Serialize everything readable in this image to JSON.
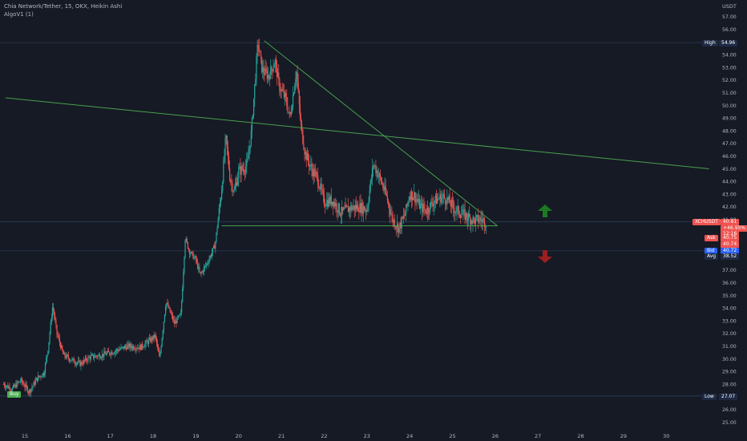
{
  "header": {
    "title": "Chia Network/Tether, 15, OKX, Heikin Ashi",
    "indicator": "AlgoV1 (1)"
  },
  "colors": {
    "background": "#161a25",
    "up": "#26a69a",
    "down": "#ef5350",
    "trendline": "#4caf50",
    "hline": "#2a3a55",
    "axis_text": "#b2b5be"
  },
  "markers": {
    "buy_label": "Buy",
    "long_arrow": "up-arrow",
    "short_arrow": "down-arrow"
  },
  "price_scale": {
    "currency": "USDT",
    "high_label": "High",
    "high_value": "54.96",
    "low_label": "Low",
    "low_value": "27.07",
    "symbol_tag": "XCHUSDT",
    "symbol_price": "40.81",
    "symbol_change": "+46.95%",
    "symbol_countdown": "12:16",
    "ask_label": "Ask",
    "ask_value": "40.75",
    "spread_value": "40.74",
    "bid_label": "Bid",
    "bid_value": "40.72",
    "avg_label": "Avg",
    "avg_value": "38.52"
  },
  "chart_data": {
    "type": "candlestick",
    "title": "Chia Network/Tether, 15, OKX, Heikin Ashi",
    "x_ticks": [
      "15",
      "16",
      "17",
      "18",
      "19",
      "20",
      "21",
      "22",
      "23",
      "24",
      "25",
      "26",
      "27",
      "28",
      "29",
      "30"
    ],
    "y_ticks": [
      "25.00",
      "26.00",
      "27.00",
      "28.00",
      "29.00",
      "30.00",
      "31.00",
      "32.00",
      "33.00",
      "34.00",
      "35.00",
      "36.00",
      "37.00",
      "38.00",
      "39.00",
      "40.00",
      "41.00",
      "42.00",
      "43.00",
      "44.00",
      "45.00",
      "46.00",
      "47.00",
      "48.00",
      "49.00",
      "50.00",
      "51.00",
      "52.00",
      "53.00",
      "54.00",
      "55.00",
      "56.00",
      "57.00"
    ],
    "ylim": [
      24.6,
      58.1
    ],
    "x_range": [
      14.55,
      31.2
    ],
    "price_path": [
      [
        14.5,
        28.0
      ],
      [
        14.7,
        27.6
      ],
      [
        14.9,
        28.3
      ],
      [
        15.1,
        27.4
      ],
      [
        15.3,
        28.5
      ],
      [
        15.45,
        28.9
      ],
      [
        15.55,
        31.0
      ],
      [
        15.65,
        34.2
      ],
      [
        15.75,
        32.0
      ],
      [
        15.9,
        30.3
      ],
      [
        16.1,
        29.9
      ],
      [
        16.3,
        29.6
      ],
      [
        16.5,
        30.1
      ],
      [
        16.8,
        30.3
      ],
      [
        17.1,
        30.6
      ],
      [
        17.4,
        31.0
      ],
      [
        17.7,
        30.9
      ],
      [
        17.9,
        31.4
      ],
      [
        18.05,
        31.8
      ],
      [
        18.15,
        30.0
      ],
      [
        18.3,
        34.5
      ],
      [
        18.5,
        32.8
      ],
      [
        18.65,
        33.5
      ],
      [
        18.75,
        39.5
      ],
      [
        18.85,
        38.5
      ],
      [
        19.0,
        37.8
      ],
      [
        19.1,
        36.6
      ],
      [
        19.3,
        37.8
      ],
      [
        19.45,
        39.0
      ],
      [
        19.6,
        43.3
      ],
      [
        19.7,
        47.5
      ],
      [
        19.8,
        44.2
      ],
      [
        19.9,
        43.2
      ],
      [
        20.0,
        44.8
      ],
      [
        20.1,
        45.0
      ],
      [
        20.2,
        45.3
      ],
      [
        20.3,
        48.0
      ],
      [
        20.45,
        55.0
      ],
      [
        20.55,
        52.8
      ],
      [
        20.7,
        52.3
      ],
      [
        20.85,
        53.5
      ],
      [
        20.95,
        51.5
      ],
      [
        21.1,
        50.5
      ],
      [
        21.2,
        49.0
      ],
      [
        21.35,
        52.8
      ],
      [
        21.45,
        48.5
      ],
      [
        21.55,
        46.3
      ],
      [
        21.7,
        45.0
      ],
      [
        21.85,
        44.2
      ],
      [
        22.0,
        42.4
      ],
      [
        22.2,
        42.5
      ],
      [
        22.4,
        41.5
      ],
      [
        22.6,
        41.9
      ],
      [
        22.8,
        42.0
      ],
      [
        23.0,
        41.8
      ],
      [
        23.15,
        45.4
      ],
      [
        23.3,
        44.3
      ],
      [
        23.45,
        42.9
      ],
      [
        23.6,
        41.0
      ],
      [
        23.75,
        40.3
      ],
      [
        23.9,
        41.5
      ],
      [
        24.0,
        43.0
      ],
      [
        24.1,
        42.9
      ],
      [
        24.25,
        42.0
      ],
      [
        24.4,
        41.7
      ],
      [
        24.55,
        42.4
      ],
      [
        24.75,
        42.8
      ],
      [
        24.9,
        42.5
      ],
      [
        25.05,
        41.8
      ],
      [
        25.2,
        41.5
      ],
      [
        25.35,
        41.2
      ],
      [
        25.5,
        40.9
      ],
      [
        25.65,
        41.0
      ],
      [
        25.8,
        40.8
      ]
    ],
    "trendlines": [
      {
        "name": "descending-trendline-upper",
        "from": [
          20.6,
          55.1
        ],
        "to": [
          26.05,
          40.5
        ]
      },
      {
        "name": "triangle-support",
        "from": [
          19.6,
          40.5
        ],
        "to": [
          26.05,
          40.5
        ]
      },
      {
        "name": "long-trendline",
        "from": [
          14.55,
          50.6
        ],
        "to": [
          31.0,
          45.0
        ]
      }
    ],
    "horizontal_levels": [
      54.96,
      40.81,
      38.52,
      27.07
    ],
    "buy_signal": [
      15.3,
      27.5
    ]
  }
}
